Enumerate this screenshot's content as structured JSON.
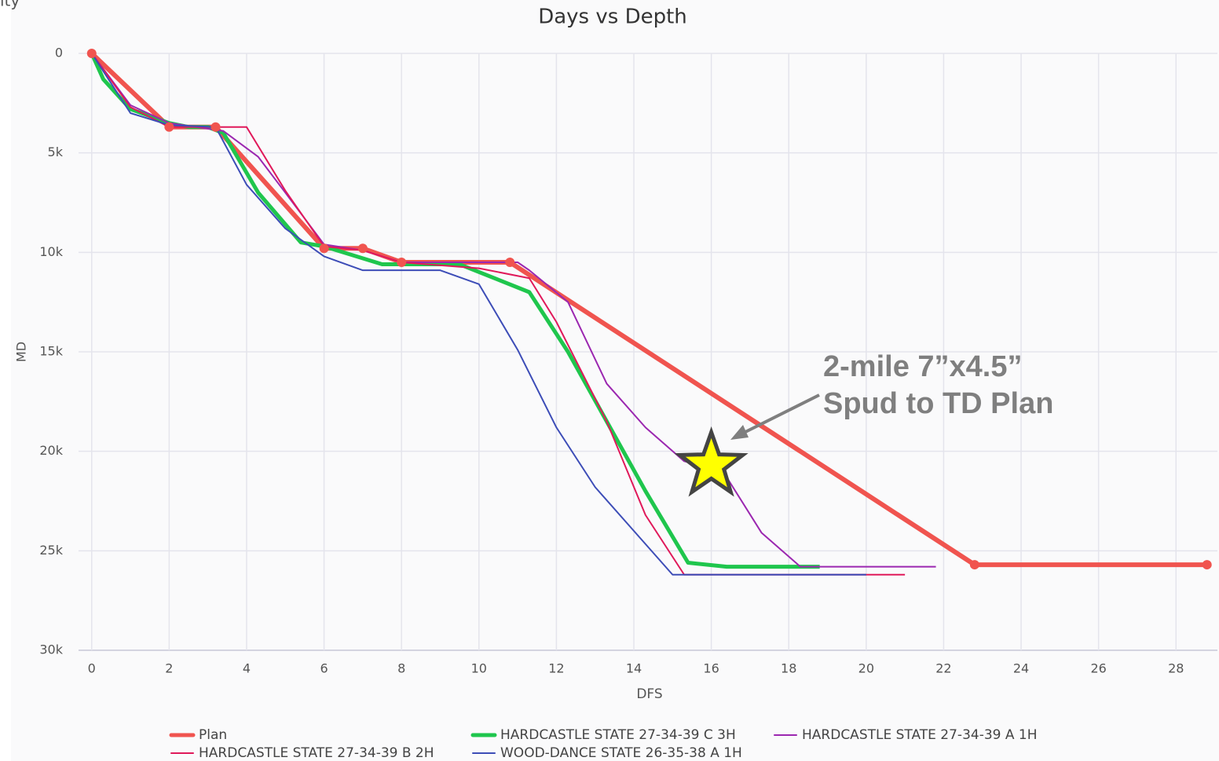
{
  "corner_text": "ity",
  "chart_data": {
    "type": "line",
    "title": "Days vs Depth",
    "x_label": "DFS",
    "y_label": "MD",
    "xlim": [
      -0.34,
      29.07
    ],
    "ylim": [
      0,
      30000
    ],
    "y_reversed": true,
    "grid": true,
    "xticks": [
      0,
      2,
      4,
      6,
      8,
      10,
      12,
      14,
      16,
      18,
      20,
      22,
      24,
      26,
      28
    ],
    "yticks": [
      0,
      {
        "value": 5000,
        "label": "5k"
      },
      {
        "value": 10000,
        "label": "10k"
      },
      {
        "value": 15000,
        "label": "15k"
      },
      {
        "value": 20000,
        "label": "20k"
      },
      {
        "value": 25000,
        "label": "25k"
      },
      {
        "value": 30000,
        "label": "30k"
      }
    ],
    "series": [
      {
        "name": "Plan",
        "color": "#f0544f",
        "line_width": 6,
        "markers": true,
        "x": [
          0,
          2,
          3.2,
          6,
          7,
          8,
          10.8,
          22.8,
          28.8
        ],
        "values": [
          0,
          3700,
          3700,
          9800,
          9800,
          10500,
          10500,
          25700,
          25700
        ]
      },
      {
        "name": "HARDCASTLE STATE 27-34-39 C 3H",
        "color": "#1fc64d",
        "line_width": 5,
        "x": [
          0,
          0.3,
          1,
          2,
          2.5,
          3,
          3.4,
          4.3,
          5.4,
          6,
          7.5,
          9.5,
          11.3,
          12.3,
          14.3,
          15.4,
          16.4,
          18.8
        ],
        "values": [
          0,
          1300,
          2800,
          3500,
          3700,
          3700,
          4000,
          7000,
          9500,
          9700,
          10600,
          10600,
          12000,
          15000,
          22000,
          25600,
          25800,
          25800
        ]
      },
      {
        "name": "HARDCASTLE STATE 27-34-39 A 1H",
        "color": "#9b27b0",
        "line_width": 2,
        "x": [
          0,
          1,
          2,
          3.4,
          4.3,
          5,
          6,
          7,
          8,
          11,
          11.3,
          12.3,
          13.3,
          14.3,
          15.3,
          16.3,
          17.3,
          18.3,
          21.8
        ],
        "values": [
          0,
          2600,
          3500,
          3900,
          5200,
          7000,
          9600,
          9900,
          10500,
          10500,
          10900,
          12500,
          16600,
          18800,
          20500,
          21000,
          24100,
          25800,
          25800
        ]
      },
      {
        "name": "HARDCASTLE STATE 27-34-39 B 2H",
        "color": "#e0195a",
        "line_width": 2,
        "x": [
          0,
          1,
          2,
          4,
          5,
          6,
          7,
          8,
          10,
          11.3,
          12,
          13.3,
          14.3,
          15.3,
          21
        ],
        "values": [
          0,
          2700,
          3700,
          3700,
          6900,
          9700,
          9900,
          10500,
          10800,
          11300,
          13500,
          18500,
          23200,
          26200,
          26200
        ]
      },
      {
        "name": "WOOD-DANCE STATE 26-35-38 A 1H",
        "color": "#3d4db7",
        "line_width": 2,
        "x": [
          0,
          1,
          2,
          3.2,
          4,
          5,
          6,
          7,
          9,
          10,
          11,
          12,
          13,
          14,
          15,
          20
        ],
        "values": [
          0,
          3000,
          3600,
          3700,
          6600,
          8800,
          10200,
          10900,
          10900,
          11600,
          14900,
          18800,
          21800,
          24000,
          26200,
          26200
        ]
      }
    ],
    "annotation": {
      "lines": [
        "2-mile 7”x4.5”",
        "Spud to TD Plan"
      ],
      "x": 16,
      "y": 20700,
      "color": "#7f7f7f",
      "star_color": "#ffff00"
    }
  }
}
